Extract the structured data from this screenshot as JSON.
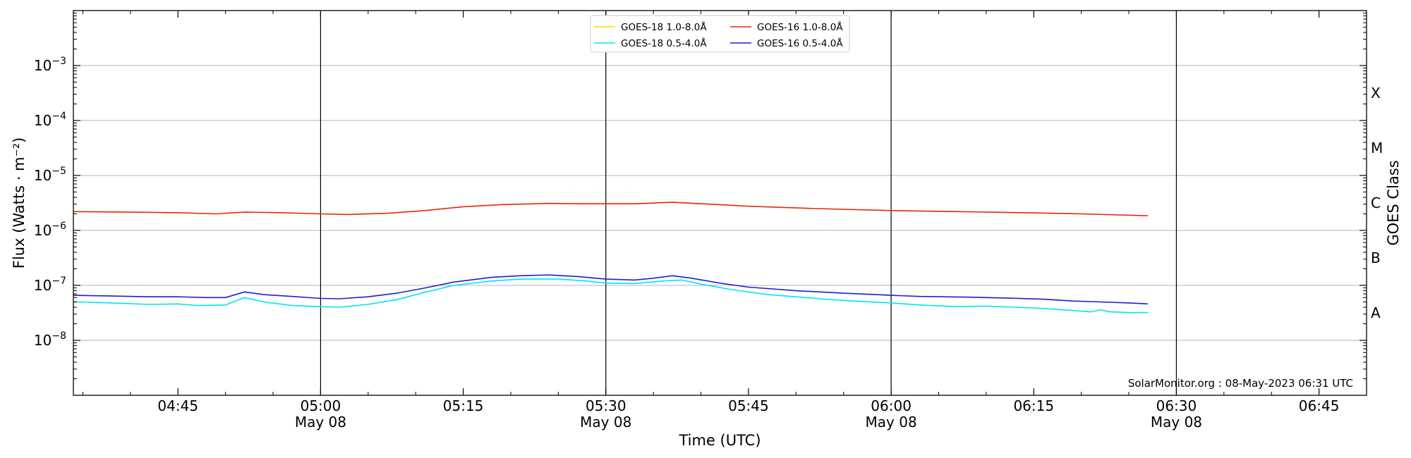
{
  "chart_data": {
    "type": "line",
    "xlabel": "Time (UTC)",
    "ylabel": "Flux (Watts · m⁻²)",
    "right_label": "GOES Class",
    "credit": "SolarMonitor.org : 08-May-2023 06:31 UTC",
    "y_scale": "log",
    "ylim": [
      1e-09,
      0.01
    ],
    "xlim": [
      "04:34",
      "06:50"
    ],
    "grid": "horizontal",
    "legend_position": "top-center",
    "x_ticks": [
      {
        "time": "04:45",
        "label": "04:45",
        "sublabel": ""
      },
      {
        "time": "05:00",
        "label": "05:00",
        "sublabel": "May 08"
      },
      {
        "time": "05:15",
        "label": "05:15",
        "sublabel": ""
      },
      {
        "time": "05:30",
        "label": "05:30",
        "sublabel": "May 08"
      },
      {
        "time": "05:45",
        "label": "05:45",
        "sublabel": ""
      },
      {
        "time": "06:00",
        "label": "06:00",
        "sublabel": "May 08"
      },
      {
        "time": "06:15",
        "label": "06:15",
        "sublabel": ""
      },
      {
        "time": "06:30",
        "label": "06:30",
        "sublabel": "May 08"
      },
      {
        "time": "06:45",
        "label": "06:45",
        "sublabel": ""
      }
    ],
    "day_lines": [
      "05:00",
      "05:30",
      "06:00",
      "06:30"
    ],
    "y_ticks": [
      {
        "value": 1e-08,
        "mant": "10",
        "exp": "−8"
      },
      {
        "value": 1e-07,
        "mant": "10",
        "exp": "−7"
      },
      {
        "value": 1e-06,
        "mant": "10",
        "exp": "−6"
      },
      {
        "value": 1e-05,
        "mant": "10",
        "exp": "−5"
      },
      {
        "value": 0.0001,
        "mant": "10",
        "exp": "−4"
      },
      {
        "value": 0.001,
        "mant": "10",
        "exp": "−3"
      }
    ],
    "goes_classes": [
      {
        "label": "A",
        "value": 3.16e-08
      },
      {
        "label": "B",
        "value": 3.16e-07
      },
      {
        "label": "C",
        "value": 3.16e-06
      },
      {
        "label": "M",
        "value": 3.16e-05
      },
      {
        "label": "X",
        "value": 0.000316
      }
    ],
    "series": [
      {
        "name": "GOES-18 1.0-8.0Å",
        "color": "#ffd700",
        "points": []
      },
      {
        "name": "GOES-18 0.5-4.0Å",
        "color": "#00e5ee",
        "points": [
          [
            "04:34",
            5e-08
          ],
          [
            "04:38",
            4.8e-08
          ],
          [
            "04:42",
            4.5e-08
          ],
          [
            "04:45",
            4.6e-08
          ],
          [
            "04:47",
            4.3e-08
          ],
          [
            "04:50",
            4.4e-08
          ],
          [
            "04:52",
            6e-08
          ],
          [
            "04:54",
            5e-08
          ],
          [
            "04:57",
            4.3e-08
          ],
          [
            "05:00",
            4.1e-08
          ],
          [
            "05:02",
            4e-08
          ],
          [
            "05:05",
            4.5e-08
          ],
          [
            "05:08",
            5.5e-08
          ],
          [
            "05:11",
            7.5e-08
          ],
          [
            "05:14",
            1e-07
          ],
          [
            "05:18",
            1.2e-07
          ],
          [
            "05:21",
            1.3e-07
          ],
          [
            "05:25",
            1.3e-07
          ],
          [
            "05:28",
            1.2e-07
          ],
          [
            "05:30",
            1.1e-07
          ],
          [
            "05:33",
            1.08e-07
          ],
          [
            "05:36",
            1.2e-07
          ],
          [
            "05:38",
            1.25e-07
          ],
          [
            "05:40",
            1.05e-07
          ],
          [
            "05:43",
            8.5e-08
          ],
          [
            "05:47",
            6.8e-08
          ],
          [
            "05:50",
            6.2e-08
          ],
          [
            "05:53",
            5.6e-08
          ],
          [
            "05:56",
            5.2e-08
          ],
          [
            "06:00",
            4.8e-08
          ],
          [
            "06:03",
            4.4e-08
          ],
          [
            "06:07",
            4.1e-08
          ],
          [
            "06:10",
            4.2e-08
          ],
          [
            "06:13",
            4e-08
          ],
          [
            "06:16",
            3.8e-08
          ],
          [
            "06:19",
            3.5e-08
          ],
          [
            "06:21",
            3.3e-08
          ],
          [
            "06:22",
            3.6e-08
          ],
          [
            "06:23",
            3.3e-08
          ],
          [
            "06:25",
            3.2e-08
          ],
          [
            "06:27",
            3.2e-08
          ]
        ]
      },
      {
        "name": "GOES-16 1.0-8.0Å",
        "color": "#e8260c",
        "points": [
          [
            "04:34",
            2.2e-06
          ],
          [
            "04:40",
            2.15e-06
          ],
          [
            "04:45",
            2.1e-06
          ],
          [
            "04:49",
            2e-06
          ],
          [
            "04:52",
            2.15e-06
          ],
          [
            "04:56",
            2.1e-06
          ],
          [
            "05:00",
            2e-06
          ],
          [
            "05:03",
            1.95e-06
          ],
          [
            "05:07",
            2.05e-06
          ],
          [
            "05:11",
            2.3e-06
          ],
          [
            "05:15",
            2.7e-06
          ],
          [
            "05:19",
            2.95e-06
          ],
          [
            "05:24",
            3.1e-06
          ],
          [
            "05:28",
            3.05e-06
          ],
          [
            "05:33",
            3.05e-06
          ],
          [
            "05:37",
            3.25e-06
          ],
          [
            "05:41",
            3e-06
          ],
          [
            "05:45",
            2.75e-06
          ],
          [
            "05:52",
            2.5e-06
          ],
          [
            "06:00",
            2.3e-06
          ],
          [
            "06:07",
            2.2e-06
          ],
          [
            "06:14",
            2.1e-06
          ],
          [
            "06:20",
            2e-06
          ],
          [
            "06:27",
            1.85e-06
          ]
        ]
      },
      {
        "name": "GOES-16 0.5-4.0Å",
        "color": "#1f1fcc",
        "points": [
          [
            "04:34",
            6.6e-08
          ],
          [
            "04:38",
            6.4e-08
          ],
          [
            "04:42",
            6.2e-08
          ],
          [
            "04:45",
            6.2e-08
          ],
          [
            "04:48",
            6e-08
          ],
          [
            "04:50",
            6e-08
          ],
          [
            "04:52",
            7.6e-08
          ],
          [
            "04:54",
            6.8e-08
          ],
          [
            "04:57",
            6.3e-08
          ],
          [
            "05:00",
            5.8e-08
          ],
          [
            "05:02",
            5.7e-08
          ],
          [
            "05:05",
            6.2e-08
          ],
          [
            "05:08",
            7.2e-08
          ],
          [
            "05:11",
            9e-08
          ],
          [
            "05:14",
            1.15e-07
          ],
          [
            "05:18",
            1.4e-07
          ],
          [
            "05:21",
            1.5e-07
          ],
          [
            "05:24",
            1.55e-07
          ],
          [
            "05:27",
            1.45e-07
          ],
          [
            "05:30",
            1.3e-07
          ],
          [
            "05:33",
            1.25e-07
          ],
          [
            "05:35",
            1.35e-07
          ],
          [
            "05:37",
            1.5e-07
          ],
          [
            "05:39",
            1.35e-07
          ],
          [
            "05:42",
            1.1e-07
          ],
          [
            "05:45",
            9.3e-08
          ],
          [
            "05:50",
            8e-08
          ],
          [
            "05:55",
            7.2e-08
          ],
          [
            "06:00",
            6.6e-08
          ],
          [
            "06:03",
            6.3e-08
          ],
          [
            "06:08",
            6.1e-08
          ],
          [
            "06:12",
            5.9e-08
          ],
          [
            "06:16",
            5.6e-08
          ],
          [
            "06:19",
            5.2e-08
          ],
          [
            "06:22",
            5e-08
          ],
          [
            "06:25",
            4.8e-08
          ],
          [
            "06:27",
            4.6e-08
          ]
        ]
      }
    ]
  }
}
